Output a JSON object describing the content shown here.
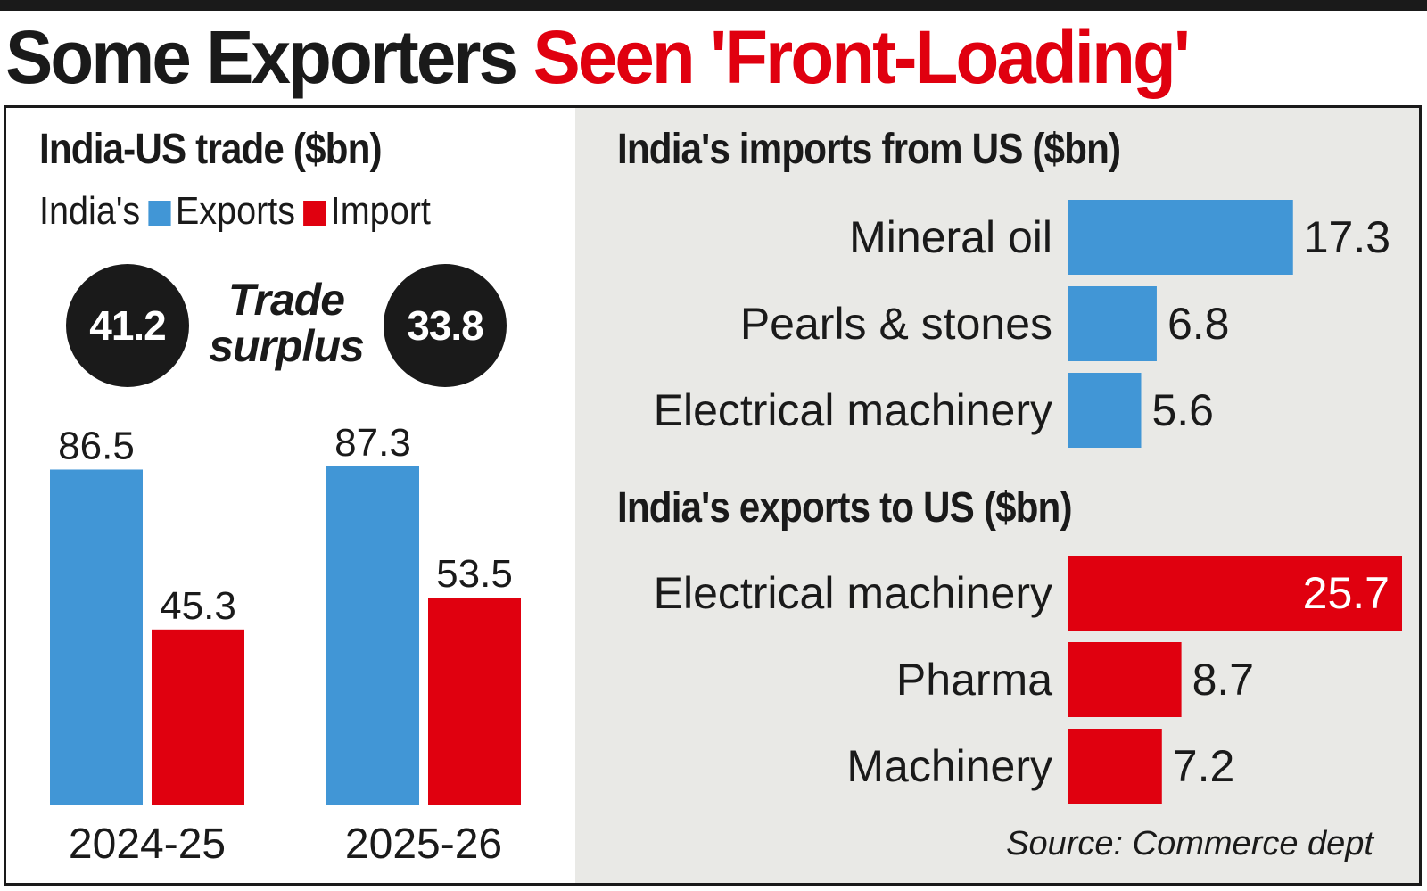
{
  "headline": {
    "part1": "Some Exporters",
    "part2": "Seen 'Front-Loading'"
  },
  "colors": {
    "exports": "#4196d6",
    "imports": "#e0000f",
    "surplus": "#1a1a1a",
    "headline_red": "#e0000f"
  },
  "source": "Source: Commerce dept",
  "chart_data": [
    {
      "type": "bar",
      "title": "India-US trade ($bn)",
      "legend": {
        "prefix": "India's",
        "items": [
          "Exports",
          "Import"
        ]
      },
      "categories": [
        "2024-25",
        "2025-26"
      ],
      "series": [
        {
          "name": "Exports",
          "values": [
            86.5,
            87.3
          ]
        },
        {
          "name": "Import",
          "values": [
            45.3,
            53.5
          ]
        }
      ],
      "trade_surplus": {
        "label_line1": "Trade",
        "label_line2": "surplus",
        "values": [
          "41.2",
          "33.8"
        ]
      },
      "ylim": [
        0,
        90
      ],
      "grid": false
    },
    {
      "type": "bar",
      "orientation": "horizontal",
      "title": "India's imports from US ($bn)",
      "categories": [
        "Mineral oil",
        "Pearls & stones",
        "Electrical machinery"
      ],
      "values": [
        17.3,
        6.8,
        5.6
      ],
      "grid": false
    },
    {
      "type": "bar",
      "orientation": "horizontal",
      "title": "India's exports to US ($bn)",
      "categories": [
        "Electrical machinery",
        "Pharma",
        "Machinery"
      ],
      "values": [
        25.7,
        8.7,
        7.2
      ],
      "grid": false
    }
  ]
}
